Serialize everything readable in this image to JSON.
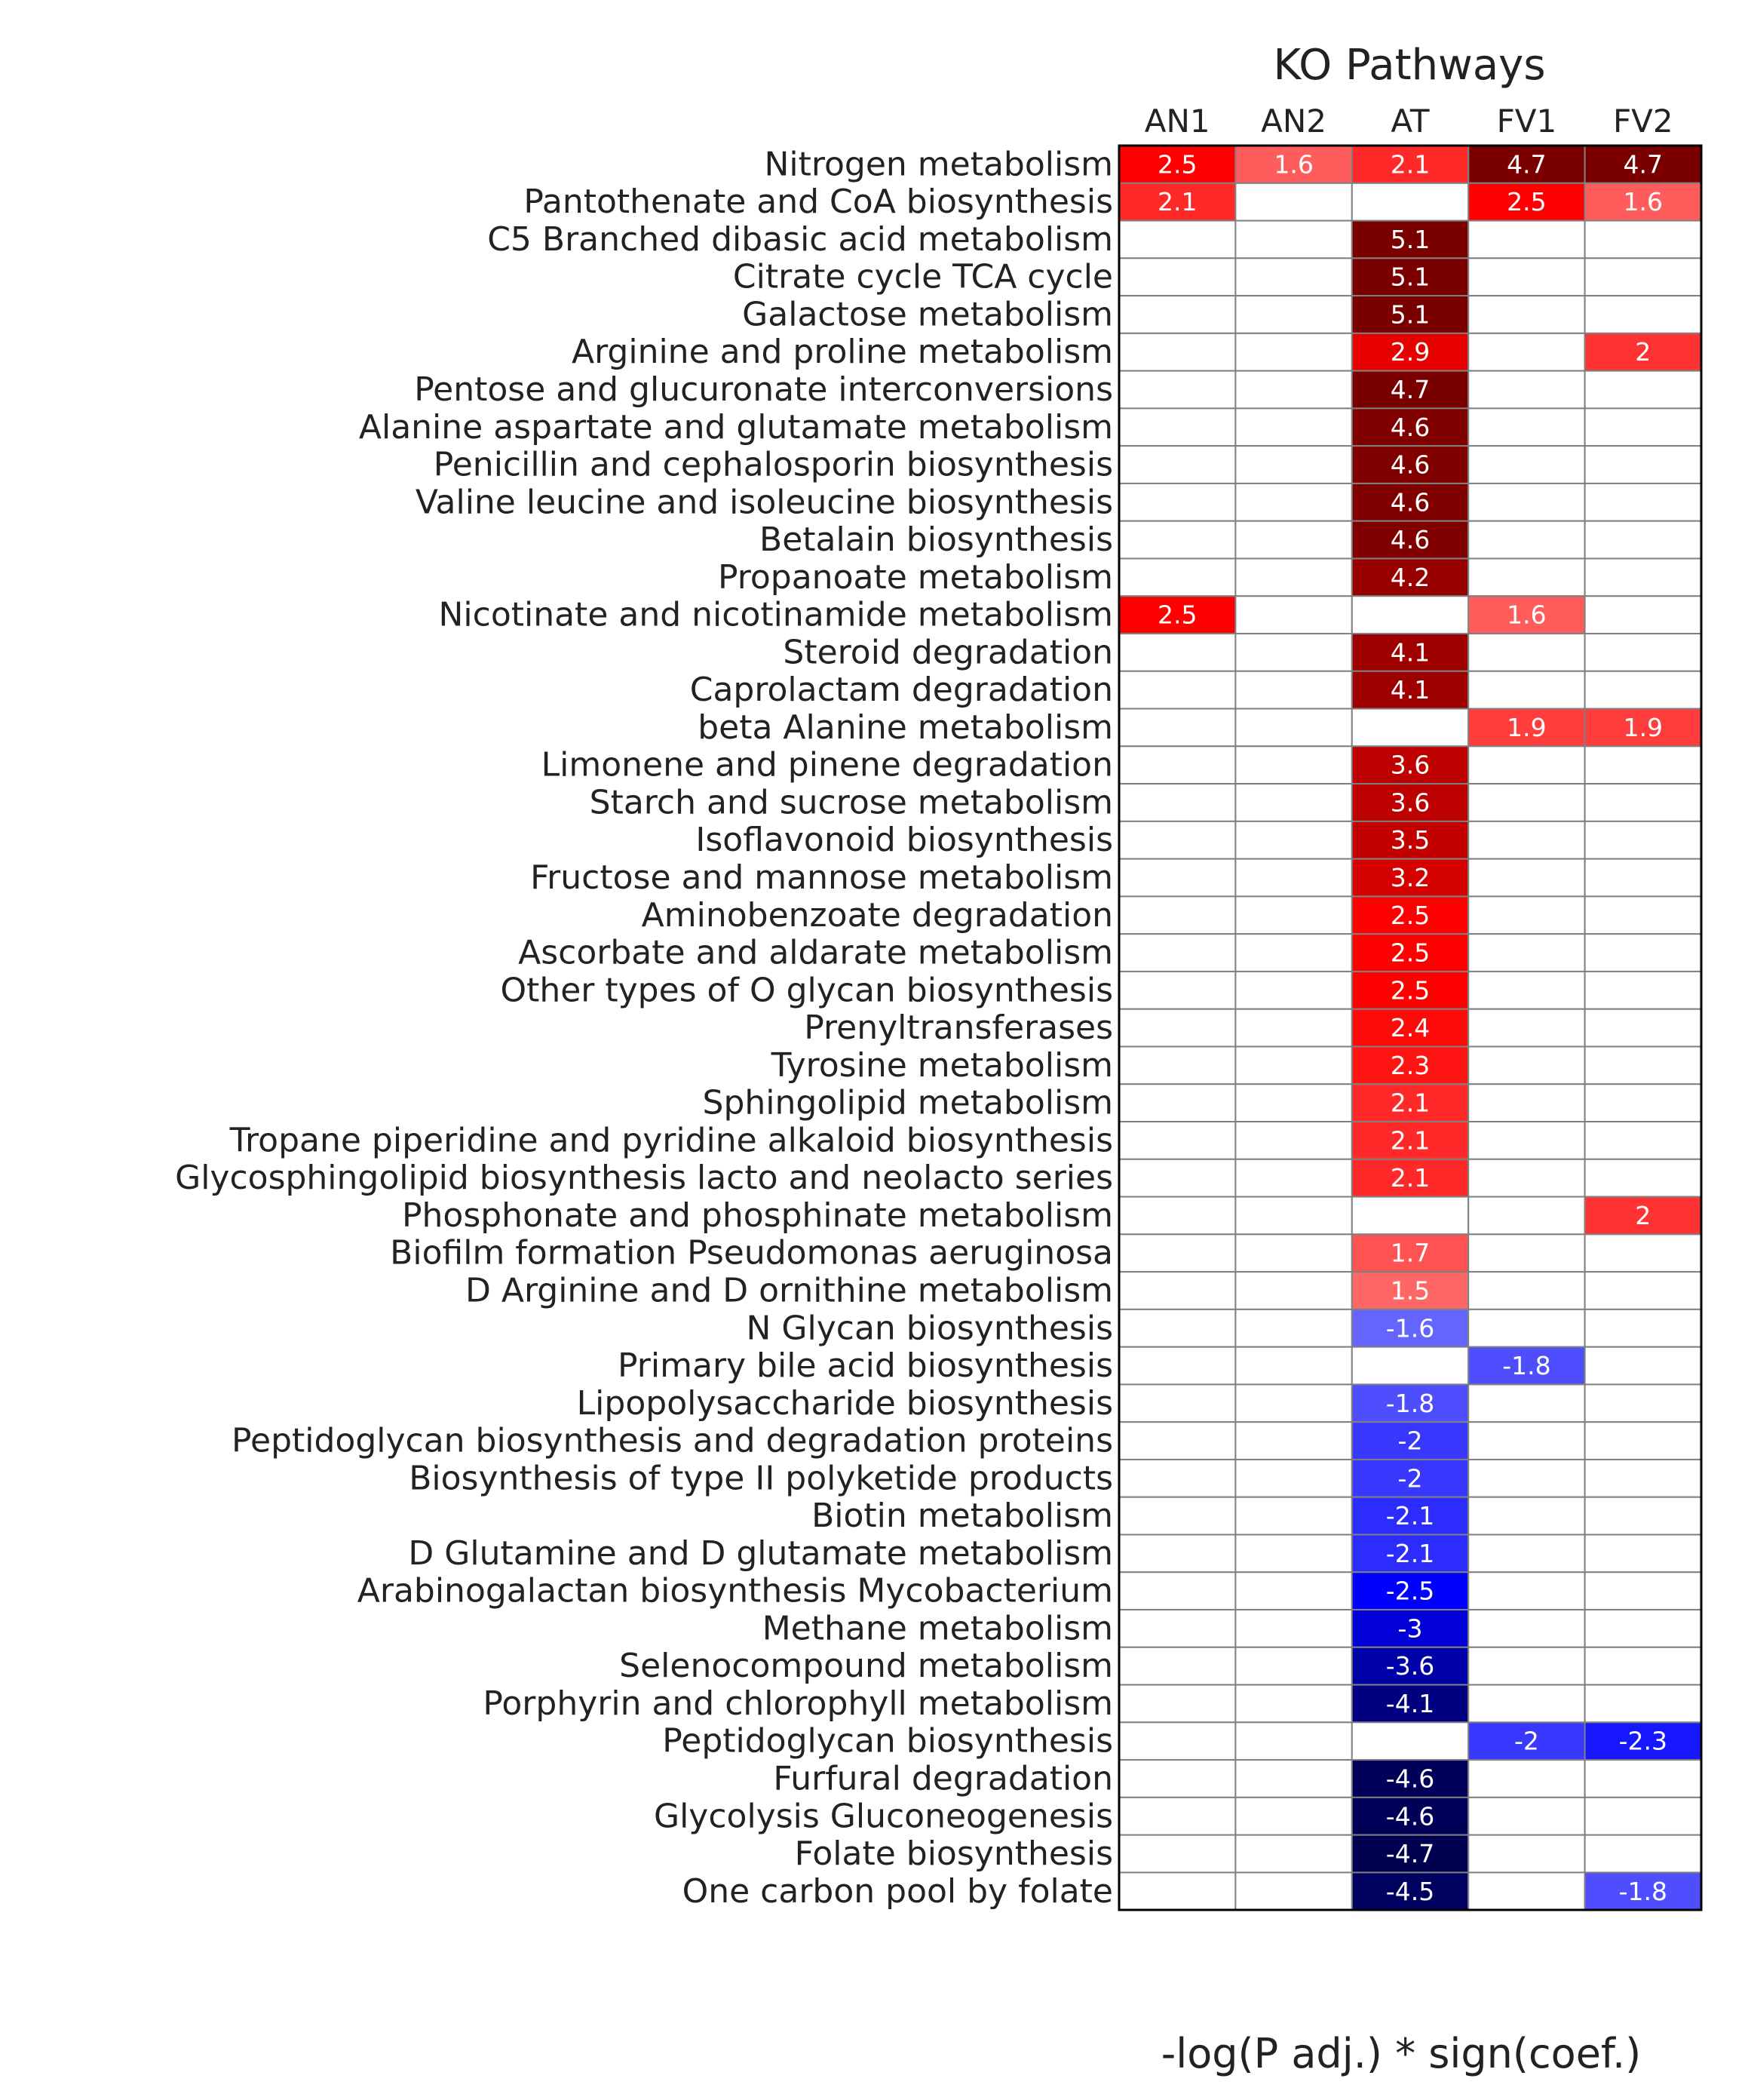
{
  "chart_data": {
    "type": "heatmap",
    "title": "KO Pathways",
    "xlabel": "-log(P adj.) * sign(coef.)",
    "columns": [
      "AN1",
      "AN2",
      "AT",
      "FV1",
      "FV2"
    ],
    "rows": [
      "Nitrogen metabolism",
      "Pantothenate and CoA biosynthesis",
      "C5 Branched dibasic acid metabolism",
      "Citrate cycle TCA cycle",
      "Galactose metabolism",
      "Arginine and proline metabolism",
      "Pentose and glucuronate interconversions",
      "Alanine aspartate and glutamate metabolism",
      "Penicillin and cephalosporin biosynthesis",
      "Valine leucine and isoleucine biosynthesis",
      "Betalain biosynthesis",
      "Propanoate metabolism",
      "Nicotinate and nicotinamide metabolism",
      "Steroid degradation",
      "Caprolactam degradation",
      "beta Alanine metabolism",
      "Limonene and pinene degradation",
      "Starch and sucrose metabolism",
      "Isoflavonoid biosynthesis",
      "Fructose and mannose metabolism",
      "Aminobenzoate degradation",
      "Ascorbate and aldarate metabolism",
      "Other types of O glycan biosynthesis",
      "Prenyltransferases",
      "Tyrosine metabolism",
      "Sphingolipid metabolism",
      "Tropane piperidine and pyridine alkaloid biosynthesis",
      "Glycosphingolipid biosynthesis lacto and neolacto series",
      "Phosphonate and phosphinate metabolism",
      "Biofilm formation Pseudomonas aeruginosa",
      "D Arginine and D ornithine metabolism",
      "N Glycan biosynthesis",
      "Primary bile acid biosynthesis",
      "Lipopolysaccharide biosynthesis",
      "Peptidoglycan biosynthesis and degradation proteins",
      "Biosynthesis of type II polyketide products",
      "Biotin metabolism",
      "D Glutamine and D glutamate metabolism",
      "Arabinogalactan biosynthesis Mycobacterium",
      "Methane metabolism",
      "Selenocompound metabolism",
      "Porphyrin and chlorophyll metabolism",
      "Peptidoglycan biosynthesis",
      "Furfural degradation",
      "Glycolysis Gluconeogenesis",
      "Folate biosynthesis",
      "One carbon pool by folate"
    ],
    "values": [
      [
        2.5,
        1.6,
        2.1,
        4.7,
        4.7
      ],
      [
        2.1,
        null,
        null,
        2.5,
        1.6
      ],
      [
        null,
        null,
        5.1,
        null,
        null
      ],
      [
        null,
        null,
        5.1,
        null,
        null
      ],
      [
        null,
        null,
        5.1,
        null,
        null
      ],
      [
        null,
        null,
        2.9,
        null,
        2
      ],
      [
        null,
        null,
        4.7,
        null,
        null
      ],
      [
        null,
        null,
        4.6,
        null,
        null
      ],
      [
        null,
        null,
        4.6,
        null,
        null
      ],
      [
        null,
        null,
        4.6,
        null,
        null
      ],
      [
        null,
        null,
        4.6,
        null,
        null
      ],
      [
        null,
        null,
        4.2,
        null,
        null
      ],
      [
        2.5,
        null,
        null,
        1.6,
        null
      ],
      [
        null,
        null,
        4.1,
        null,
        null
      ],
      [
        null,
        null,
        4.1,
        null,
        null
      ],
      [
        null,
        null,
        null,
        1.9,
        1.9
      ],
      [
        null,
        null,
        3.6,
        null,
        null
      ],
      [
        null,
        null,
        3.6,
        null,
        null
      ],
      [
        null,
        null,
        3.5,
        null,
        null
      ],
      [
        null,
        null,
        3.2,
        null,
        null
      ],
      [
        null,
        null,
        2.5,
        null,
        null
      ],
      [
        null,
        null,
        2.5,
        null,
        null
      ],
      [
        null,
        null,
        2.5,
        null,
        null
      ],
      [
        null,
        null,
        2.4,
        null,
        null
      ],
      [
        null,
        null,
        2.3,
        null,
        null
      ],
      [
        null,
        null,
        2.1,
        null,
        null
      ],
      [
        null,
        null,
        2.1,
        null,
        null
      ],
      [
        null,
        null,
        2.1,
        null,
        null
      ],
      [
        null,
        null,
        null,
        null,
        2
      ],
      [
        null,
        null,
        1.7,
        null,
        null
      ],
      [
        null,
        null,
        1.5,
        null,
        null
      ],
      [
        null,
        null,
        -1.6,
        null,
        null
      ],
      [
        null,
        null,
        null,
        -1.8,
        null
      ],
      [
        null,
        null,
        -1.8,
        null,
        null
      ],
      [
        null,
        null,
        -2,
        null,
        null
      ],
      [
        null,
        null,
        -2,
        null,
        null
      ],
      [
        null,
        null,
        -2.1,
        null,
        null
      ],
      [
        null,
        null,
        -2.1,
        null,
        null
      ],
      [
        null,
        null,
        -2.5,
        null,
        null
      ],
      [
        null,
        null,
        -3,
        null,
        null
      ],
      [
        null,
        null,
        -3.6,
        null,
        null
      ],
      [
        null,
        null,
        -4.1,
        null,
        null
      ],
      [
        null,
        null,
        null,
        -2,
        -2.3
      ],
      [
        null,
        null,
        -4.6,
        null,
        null
      ],
      [
        null,
        null,
        -4.6,
        null,
        null
      ],
      [
        null,
        null,
        -4.7,
        null,
        null
      ],
      [
        null,
        null,
        -4.5,
        null,
        -1.8
      ]
    ],
    "color_scale": {
      "positive_light": "#ff6666",
      "positive_mid": "#ff0000",
      "positive_dark": "#7a0000",
      "negative_light": "#6f6fff",
      "negative_mid": "#0000ff",
      "negative_dark": "#000050",
      "empty": "#ffffff",
      "grid": "#808080"
    },
    "grid": true,
    "legend": "none"
  }
}
